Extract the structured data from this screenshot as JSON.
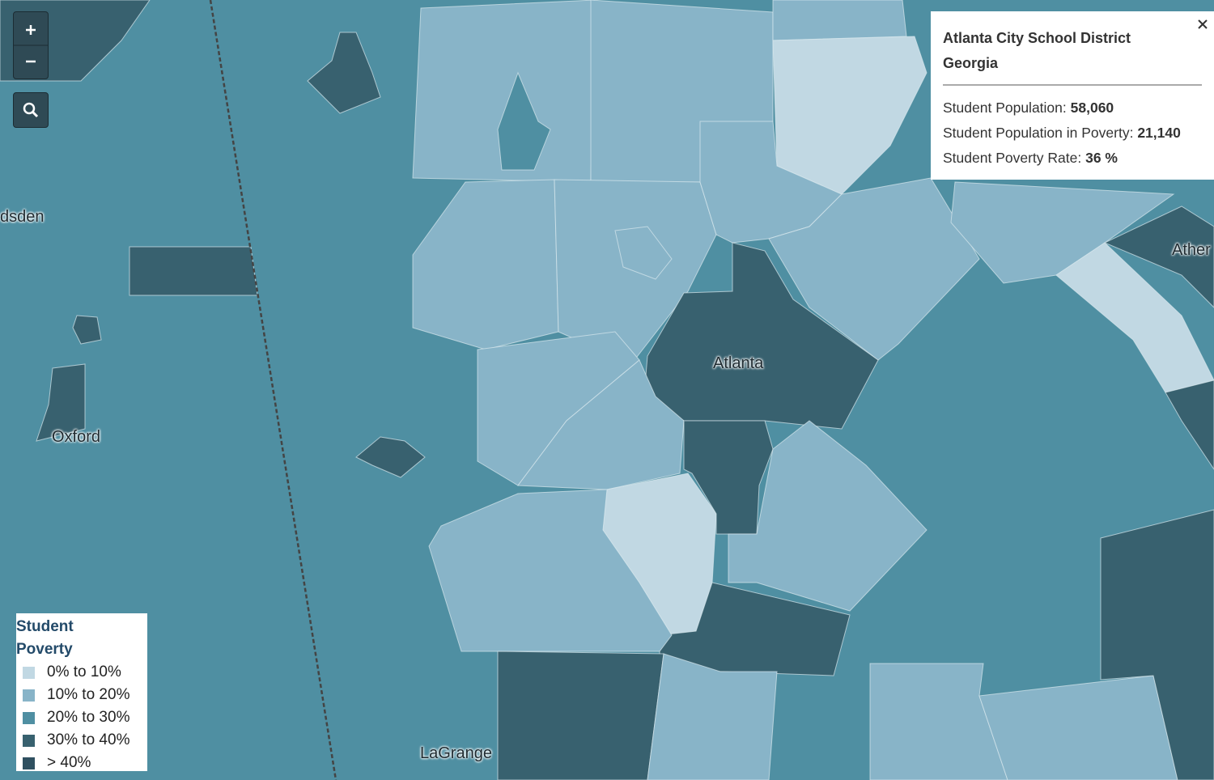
{
  "places": [
    {
      "label": "dsden"
    },
    {
      "label": "Oxford"
    },
    {
      "label": "Atlanta"
    },
    {
      "label": "Ather"
    },
    {
      "label": "LaGrange"
    }
  ],
  "popup": {
    "title": "Atlanta City School District",
    "subtitle": "Georgia",
    "rows": [
      {
        "label": "Student Population:",
        "value": "58,060"
      },
      {
        "label": "Student Population in Poverty:",
        "value": "21,140"
      },
      {
        "label": "Student Poverty Rate:",
        "value": "36 %"
      }
    ]
  },
  "legend": {
    "title": "Student Poverty",
    "items": [
      {
        "label": "0% to 10%",
        "color": "#c1d8e3"
      },
      {
        "label": "10% to 20%",
        "color": "#88b4c8"
      },
      {
        "label": "20% to 30%",
        "color": "#4f8fa2"
      },
      {
        "label": "30% to 40%",
        "color": "#38616f"
      },
      {
        "label": "> 40%",
        "color": "#2f5060"
      }
    ]
  }
}
